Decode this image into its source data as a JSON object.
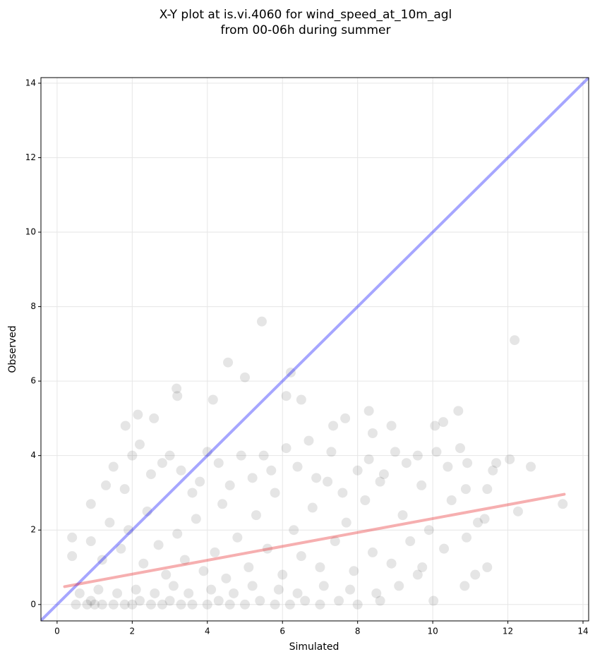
{
  "chart_data": {
    "type": "scatter",
    "title": "X-Y plot at is.vi.4060 for wind_speed_at_10m_agl",
    "subtitle": "from 00-06h during summer",
    "x_label": "Simulated",
    "y_label": "Observed",
    "xlim": [
      -0.43,
      14.15
    ],
    "ylim": [
      -0.44,
      14.15
    ],
    "xticks": [
      0,
      2,
      4,
      6,
      8,
      10,
      12,
      14
    ],
    "yticks": [
      0,
      2,
      4,
      6,
      8,
      10,
      12,
      14
    ],
    "grid": true,
    "series": [
      {
        "color": "#000000",
        "x": [
          5.45,
          12.18,
          4.55,
          5.0,
          6.22,
          3.18,
          3.2,
          6.1,
          6.5,
          4.15,
          2.58,
          2.15,
          7.67,
          8.3,
          10.68,
          10.28,
          10.06,
          1.82,
          8.9,
          7.35,
          8.4,
          10.73,
          10.92,
          11.69,
          12.05,
          12.61,
          13.46,
          12.27,
          10.88,
          11.45,
          11.38,
          11.45,
          11.13,
          10.02,
          10.85,
          9.72,
          0.5,
          0.8,
          0.9,
          1.0,
          1.2,
          1.5,
          1.8,
          2.0,
          2.2,
          2.5,
          2.8,
          3.0,
          3.3,
          3.6,
          4.0,
          4.3,
          4.6,
          5.0,
          5.4,
          5.8,
          6.2,
          6.6,
          7.0,
          7.5,
          8.0,
          8.6,
          0.6,
          1.1,
          1.6,
          2.1,
          2.6,
          3.1,
          3.5,
          4.1,
          4.7,
          5.2,
          5.9,
          6.4,
          7.1,
          7.8,
          8.5,
          9.1,
          9.6,
          0.4,
          0.9,
          1.2,
          1.4,
          1.7,
          1.9,
          2.3,
          2.4,
          2.7,
          2.9,
          3.2,
          3.4,
          3.7,
          3.9,
          4.2,
          4.4,
          4.5,
          4.8,
          5.1,
          5.3,
          5.6,
          5.8,
          6.0,
          6.3,
          6.5,
          6.8,
          7.0,
          7.2,
          7.4,
          7.7,
          7.9,
          8.2,
          8.4,
          8.7,
          8.9,
          9.2,
          9.4,
          9.7,
          9.9,
          10.3,
          10.5,
          10.9,
          11.2,
          11.6,
          0.4,
          0.9,
          1.3,
          1.5,
          1.8,
          2.0,
          2.2,
          2.5,
          2.8,
          3.0,
          3.3,
          3.6,
          3.8,
          4.0,
          4.3,
          4.6,
          4.9,
          5.2,
          5.5,
          5.7,
          6.1,
          6.4,
          6.7,
          6.9,
          7.3,
          7.6,
          8.0,
          8.3,
          8.6,
          9.0,
          9.3,
          9.6,
          10.1,
          10.4
        ],
        "values": [
          7.6,
          7.1,
          6.5,
          6.1,
          6.23,
          5.8,
          5.6,
          5.6,
          5.5,
          5.5,
          5.0,
          5.1,
          5.0,
          5.2,
          5.2,
          4.9,
          4.8,
          4.8,
          4.8,
          4.8,
          4.6,
          4.2,
          3.8,
          3.8,
          3.9,
          3.7,
          2.7,
          2.5,
          3.1,
          3.1,
          2.3,
          1.0,
          0.8,
          0.1,
          0.5,
          1.0,
          0,
          0,
          0.1,
          0,
          0,
          0,
          0,
          0,
          0.1,
          0,
          0,
          0.1,
          0,
          0,
          0,
          0.1,
          0,
          0,
          0.1,
          0,
          0,
          0.1,
          0,
          0.1,
          0,
          0.1,
          0.3,
          0.4,
          0.3,
          0.4,
          0.3,
          0.5,
          0.3,
          0.4,
          0.3,
          0.5,
          0.4,
          0.3,
          0.5,
          0.4,
          0.3,
          0.5,
          0.8,
          1.3,
          1.7,
          1.2,
          2.2,
          1.5,
          2.0,
          1.1,
          2.5,
          1.6,
          0.8,
          1.9,
          1.2,
          2.3,
          0.9,
          1.4,
          2.7,
          0.7,
          1.8,
          1.0,
          2.4,
          1.5,
          3.0,
          0.8,
          2.0,
          1.3,
          2.6,
          1.0,
          3.3,
          1.7,
          2.2,
          0.9,
          2.8,
          1.4,
          3.5,
          1.1,
          2.4,
          1.7,
          3.2,
          2.0,
          1.5,
          2.8,
          1.8,
          2.2,
          3.6,
          1.8,
          2.7,
          3.2,
          3.7,
          3.1,
          4.0,
          4.3,
          3.5,
          3.8,
          4.0,
          3.6,
          3.0,
          3.3,
          4.1,
          3.8,
          3.2,
          4.0,
          3.4,
          4.0,
          3.6,
          4.2,
          3.7,
          4.4,
          3.4,
          4.1,
          3.0,
          3.6,
          3.9,
          3.3,
          4.1,
          3.8,
          4.0,
          4.1,
          3.7
        ]
      }
    ],
    "lines": [
      {
        "color": "#0000ff",
        "x": [
          -0.5,
          14.5
        ],
        "values": [
          -0.5,
          14.5
        ]
      },
      {
        "color": "#e41a1c",
        "x": [
          0.2,
          13.5
        ],
        "values": [
          0.48,
          2.96
        ]
      }
    ]
  }
}
